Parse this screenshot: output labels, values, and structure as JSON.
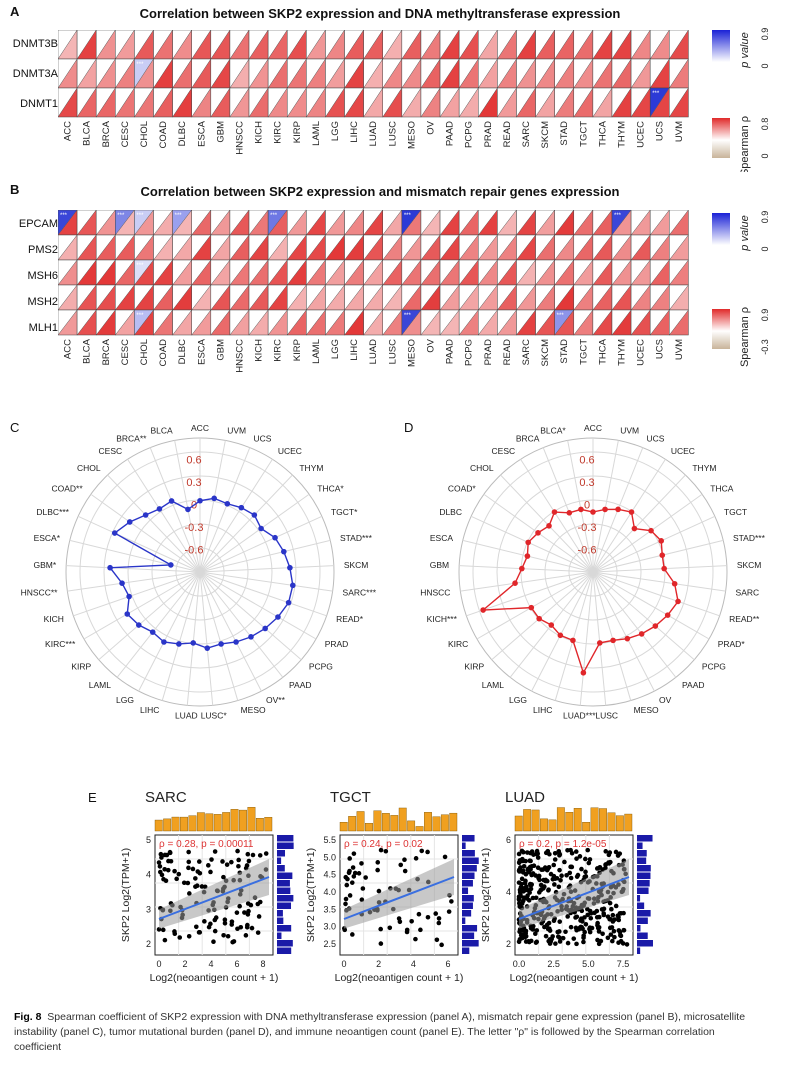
{
  "panelA": {
    "letter": "A",
    "title": "Correlation between SKP2 expression and DNA methyltransferase expression",
    "rows": [
      "DNMT3B",
      "DNMT3A",
      "DNMT1"
    ],
    "legend_p": {
      "label": "p value",
      "max": "0.9",
      "min": "0"
    },
    "legend_rho": {
      "label": "Spearman ρ",
      "max": "0.8",
      "min": "0"
    }
  },
  "panelB": {
    "letter": "B",
    "title": "Correlation between SKP2 expression and mismatch repair genes expression",
    "rows": [
      "EPCAM",
      "PMS2",
      "MSH6",
      "MSH2",
      "MLH1"
    ],
    "legend_p": {
      "label": "p value",
      "max": "0.9",
      "min": "0"
    },
    "legend_rho": {
      "label": "Spearman ρ",
      "max": "0.9",
      "min": "-0.3"
    }
  },
  "cancers": [
    "ACC",
    "BLCA",
    "BRCA",
    "CESC",
    "CHOL",
    "COAD",
    "DLBC",
    "ESCA",
    "GBM",
    "HNSCC",
    "KICH",
    "KIRC",
    "KIRP",
    "LAML",
    "LGG",
    "LIHC",
    "LUAD",
    "LUSC",
    "MESO",
    "OV",
    "PAAD",
    "PCPG",
    "PRAD",
    "READ",
    "SARC",
    "SKCM",
    "STAD",
    "TGCT",
    "THCA",
    "THYM",
    "UCEC",
    "UCS",
    "UVM"
  ],
  "panelC": {
    "letter": "C",
    "ticks": [
      "0.6",
      "0.3",
      "0",
      "-0.3",
      "-0.6"
    ],
    "labels": [
      "ACC",
      "UVM",
      "UCS",
      "UCEC",
      "THYM",
      "THCA*",
      "TGCT*",
      "STAD***",
      "SKCM",
      "SARC***",
      "READ*",
      "PRAD",
      "PCPG",
      "PAAD",
      "OV**",
      "MESO",
      "LUSC*",
      "LUAD",
      "LIHC",
      "LGG",
      "LAML",
      "KIRP",
      "KIRC***",
      "KICH",
      "HNSCC**",
      "GBM*",
      "ESCA*",
      "DLBC***",
      "COAD**",
      "CHOL",
      "CESC",
      "BRCA**",
      "BLCA"
    ],
    "color": "#2a35c8"
  },
  "panelD": {
    "letter": "D",
    "ticks": [
      "0.6",
      "0.3",
      "0",
      "-0.3",
      "-0.6"
    ],
    "labels": [
      "ACC",
      "UVM",
      "UCS",
      "UCEC",
      "THYM",
      "THCA",
      "TGCT",
      "STAD***",
      "SKCM",
      "SARC",
      "READ**",
      "PRAD*",
      "PCPG",
      "PAAD",
      "OV",
      "MESO",
      "LUSC",
      "LUAD***",
      "LIHC",
      "LGG",
      "LAML",
      "KIRP",
      "KIRC",
      "KICH***",
      "HNSCC",
      "GBM",
      "ESCA",
      "DLBC",
      "COAD*",
      "CHOL",
      "CESC",
      "BRCA",
      "BLCA*"
    ],
    "color": "#e0262a"
  },
  "panelE": {
    "letter": "E",
    "plots": [
      {
        "title": "SARC",
        "stat": "ρ = 0.28, p = 0.00011",
        "xlabel": "Log2(neoantigen count + 1)",
        "ylabel": "SKP2 Log2(TPM+1)",
        "xticks": [
          "0",
          "2",
          "4",
          "6",
          "8"
        ],
        "yticks": [
          "2",
          "3",
          "4",
          "5"
        ]
      },
      {
        "title": "TGCT",
        "stat": "ρ = 0.24, p = 0.02",
        "xlabel": "Log2(neoantigen count + 1)",
        "ylabel": "SKP2 Log2(TPM+1)",
        "xticks": [
          "0",
          "2",
          "4",
          "6"
        ],
        "yticks": [
          "2.5",
          "3.0",
          "3.5",
          "4.0",
          "4.5",
          "5.0",
          "5.5"
        ]
      },
      {
        "title": "LUAD",
        "stat": "ρ = 0.2, p = 1.2e-05",
        "xlabel": "Log2(neoantigen count + 1)",
        "ylabel": "SKP2 Log2(TPM+1)",
        "xticks": [
          "0.0",
          "2.5",
          "5.0",
          "7.5"
        ],
        "yticks": [
          "2",
          "4",
          "6"
        ]
      }
    ]
  },
  "caption": {
    "lead": "Fig. 8",
    "text": "Spearman coefficient of SKP2 expression with DNA methyltransferase expression (panel A), mismatch repair gene expression (panel B), microsatellite instability (panel C), tumor mutational burden (panel D), and immune neoantigen count (panel E). The letter \"ρ\" is followed by the Spearman correlation coefficient"
  },
  "colors": {
    "red": "#e0262a",
    "blue": "#2a35c8",
    "orange": "#f0a020",
    "navy": "#1a1aa8"
  }
}
